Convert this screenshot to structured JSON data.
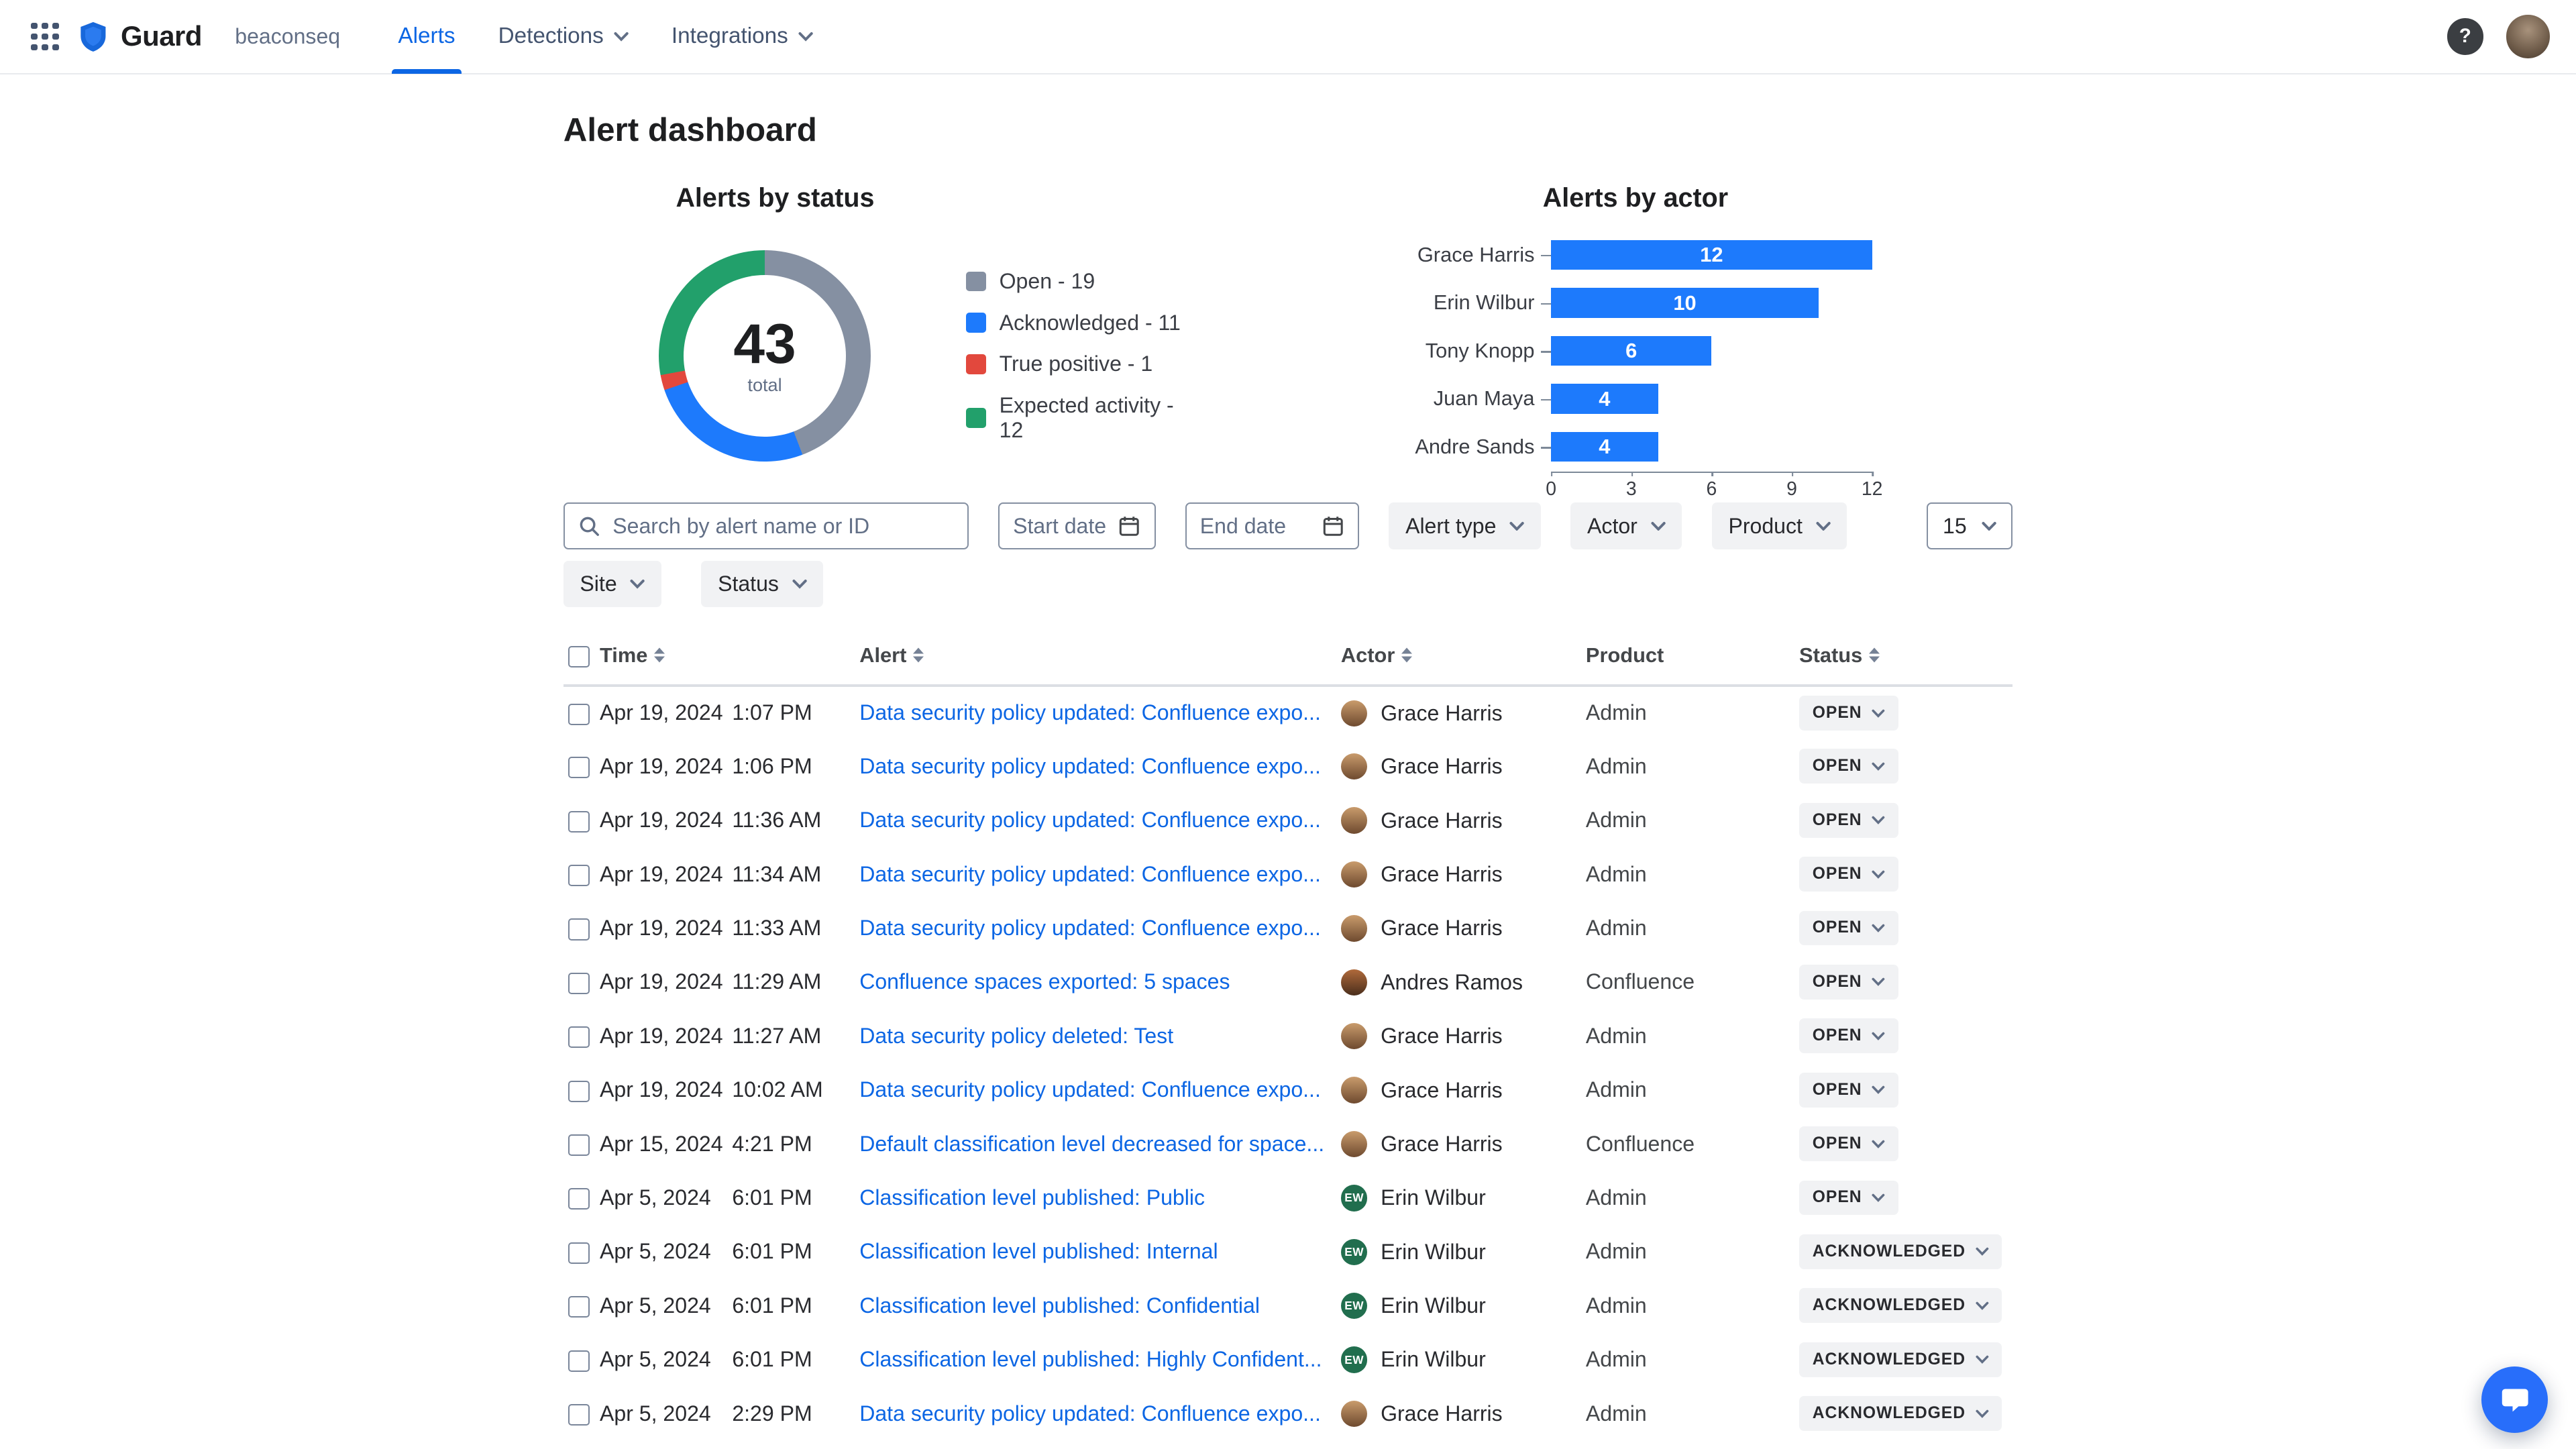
{
  "nav": {
    "brand": "Guard",
    "org": "beaconseq",
    "items": [
      {
        "label": "Alerts",
        "active": true,
        "dropdown": false
      },
      {
        "label": "Detections",
        "active": false,
        "dropdown": true
      },
      {
        "label": "Integrations",
        "active": false,
        "dropdown": true
      }
    ],
    "help_label": "?"
  },
  "page": {
    "title": "Alert dashboard"
  },
  "chart_data": [
    {
      "type": "pie",
      "subtype": "donut",
      "title": "Alerts by status",
      "total": 43,
      "total_label": "total",
      "legend_position": "right",
      "slices": [
        {
          "label": "Open",
          "value": 19,
          "color": "#8590A2"
        },
        {
          "label": "Acknowledged",
          "value": 11,
          "color": "#1D7AFC"
        },
        {
          "label": "True positive",
          "value": 1,
          "color": "#E2483D"
        },
        {
          "label": "Expected activity",
          "value": 12,
          "color": "#22A06B"
        }
      ]
    },
    {
      "type": "bar",
      "orientation": "horizontal",
      "title": "Alerts by actor",
      "categories": [
        "Grace Harris",
        "Erin Wilbur",
        "Tony Knopp",
        "Juan Maya",
        "Andre Sands"
      ],
      "values": [
        12,
        10,
        6,
        4,
        4
      ],
      "bar_color": "#1D7AFC",
      "value_label_color": "#FFFFFF",
      "xlim": [
        0,
        12
      ],
      "xticks": [
        0,
        3,
        6,
        9,
        12
      ],
      "grid": false
    }
  ],
  "filters": {
    "search_placeholder": "Search by alert name or ID",
    "start_date_placeholder": "Start date",
    "end_date_placeholder": "End date",
    "row1_dropdowns": [
      "Alert type",
      "Actor",
      "Product"
    ],
    "row2_dropdowns": [
      "Site",
      "Status"
    ],
    "page_size": "15"
  },
  "actors": {
    "Grace Harris": {
      "kind": "photo",
      "gradient": [
        "#C99B6C",
        "#6E4A2F"
      ]
    },
    "Andres Ramos": {
      "kind": "photo",
      "gradient": [
        "#B06A3B",
        "#4A2E1C"
      ]
    },
    "Erin Wilbur": {
      "kind": "initials",
      "initials": "EW",
      "color": "#216E4E"
    }
  },
  "table": {
    "headers": [
      {
        "label": "Time",
        "sortable": true
      },
      {
        "label": "Alert",
        "sortable": true
      },
      {
        "label": "Actor",
        "sortable": true
      },
      {
        "label": "Product",
        "sortable": false
      },
      {
        "label": "Status",
        "sortable": true
      }
    ],
    "rows": [
      {
        "date": "Apr 19, 2024",
        "time": "1:07 PM",
        "alert": "Data security policy updated: Confluence expo...",
        "actor": "Grace Harris",
        "product": "Admin",
        "status": "OPEN"
      },
      {
        "date": "Apr 19, 2024",
        "time": "1:06 PM",
        "alert": "Data security policy updated: Confluence expo...",
        "actor": "Grace Harris",
        "product": "Admin",
        "status": "OPEN"
      },
      {
        "date": "Apr 19, 2024",
        "time": "11:36 AM",
        "alert": "Data security policy updated: Confluence expo...",
        "actor": "Grace Harris",
        "product": "Admin",
        "status": "OPEN"
      },
      {
        "date": "Apr 19, 2024",
        "time": "11:34 AM",
        "alert": "Data security policy updated: Confluence expo...",
        "actor": "Grace Harris",
        "product": "Admin",
        "status": "OPEN"
      },
      {
        "date": "Apr 19, 2024",
        "time": "11:33 AM",
        "alert": "Data security policy updated: Confluence expo...",
        "actor": "Grace Harris",
        "product": "Admin",
        "status": "OPEN"
      },
      {
        "date": "Apr 19, 2024",
        "time": "11:29 AM",
        "alert": "Confluence spaces exported: 5 spaces",
        "actor": "Andres Ramos",
        "product": "Confluence",
        "status": "OPEN"
      },
      {
        "date": "Apr 19, 2024",
        "time": "11:27 AM",
        "alert": "Data security policy deleted: Test",
        "actor": "Grace Harris",
        "product": "Admin",
        "status": "OPEN"
      },
      {
        "date": "Apr 19, 2024",
        "time": "10:02 AM",
        "alert": "Data security policy updated: Confluence expo...",
        "actor": "Grace Harris",
        "product": "Admin",
        "status": "OPEN"
      },
      {
        "date": "Apr 15, 2024",
        "time": "4:21 PM",
        "alert": "Default classification level decreased for space...",
        "actor": "Grace Harris",
        "product": "Confluence",
        "status": "OPEN"
      },
      {
        "date": "Apr 5, 2024",
        "time": "6:01 PM",
        "alert": "Classification level published: Public",
        "actor": "Erin Wilbur",
        "product": "Admin",
        "status": "OPEN"
      },
      {
        "date": "Apr 5, 2024",
        "time": "6:01 PM",
        "alert": "Classification level published: Internal",
        "actor": "Erin Wilbur",
        "product": "Admin",
        "status": "ACKNOWLEDGED"
      },
      {
        "date": "Apr 5, 2024",
        "time": "6:01 PM",
        "alert": "Classification level published: Confidential",
        "actor": "Erin Wilbur",
        "product": "Admin",
        "status": "ACKNOWLEDGED"
      },
      {
        "date": "Apr 5, 2024",
        "time": "6:01 PM",
        "alert": "Classification level published: Highly Confident...",
        "actor": "Erin Wilbur",
        "product": "Admin",
        "status": "ACKNOWLEDGED"
      },
      {
        "date": "Apr 5, 2024",
        "time": "2:29 PM",
        "alert": "Data security policy updated: Confluence expo...",
        "actor": "Grace Harris",
        "product": "Admin",
        "status": "ACKNOWLEDGED"
      }
    ]
  }
}
